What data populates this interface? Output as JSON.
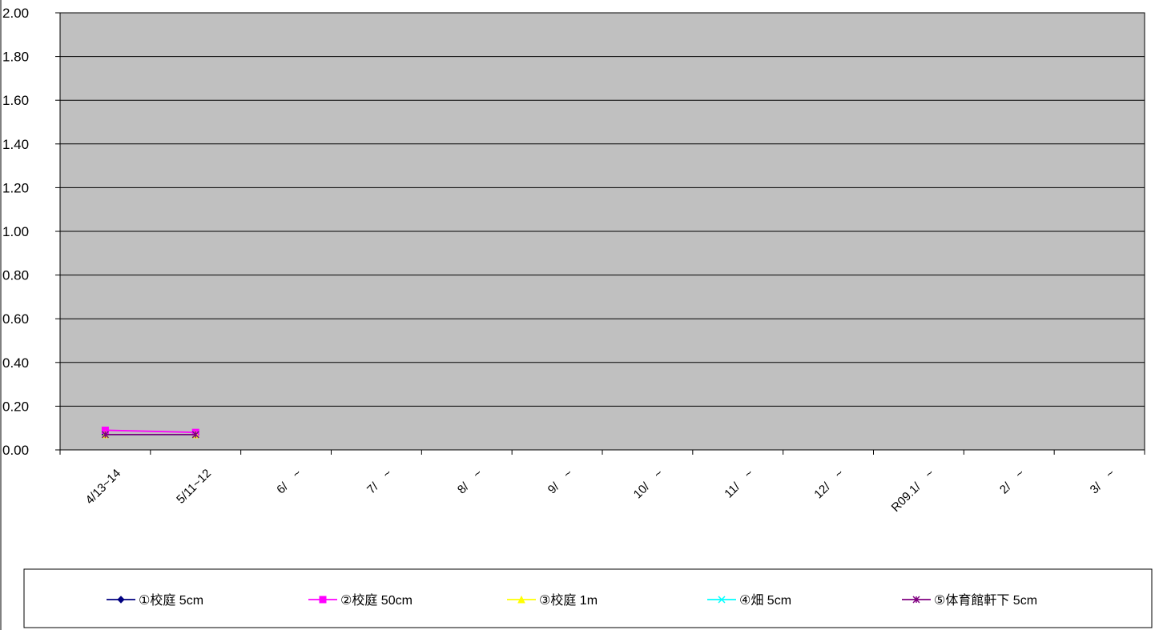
{
  "chart_data": {
    "type": "line",
    "title": "",
    "xlabel": "",
    "ylabel": "",
    "categories": [
      "4/13~14",
      "5/11~12",
      "6/　~",
      "7/　~",
      "8/　~",
      "9/　~",
      "10/　~",
      "11/　~",
      "12/　~",
      "R09.1/　~",
      "2/　~",
      "3/　~"
    ],
    "ylim": [
      0,
      2.0
    ],
    "yticks": [
      "0.00",
      "0.20",
      "0.40",
      "0.60",
      "0.80",
      "1.00",
      "1.20",
      "1.40",
      "1.60",
      "1.80",
      "2.00"
    ],
    "grid": true,
    "legend_position": "bottom",
    "plot_background": "#c0c0c0",
    "series": [
      {
        "name": "①校庭 5cm",
        "color": "#000080",
        "marker": "diamond",
        "values": [
          0.07,
          0.07,
          null,
          null,
          null,
          null,
          null,
          null,
          null,
          null,
          null,
          null
        ]
      },
      {
        "name": "②校庭 50cm",
        "color": "#ff00ff",
        "marker": "square",
        "values": [
          0.09,
          0.08,
          null,
          null,
          null,
          null,
          null,
          null,
          null,
          null,
          null,
          null
        ]
      },
      {
        "name": "③校庭 1m",
        "color": "#ffff00",
        "marker": "triangle",
        "values": [
          0.07,
          0.07,
          null,
          null,
          null,
          null,
          null,
          null,
          null,
          null,
          null,
          null
        ]
      },
      {
        "name": "④畑 5cm",
        "color": "#00ffff",
        "marker": "x",
        "values": [
          0.07,
          0.07,
          null,
          null,
          null,
          null,
          null,
          null,
          null,
          null,
          null,
          null
        ]
      },
      {
        "name": "⑤体育館軒下 5cm",
        "color": "#800080",
        "marker": "star",
        "values": [
          0.07,
          0.07,
          null,
          null,
          null,
          null,
          null,
          null,
          null,
          null,
          null,
          null
        ]
      }
    ]
  }
}
